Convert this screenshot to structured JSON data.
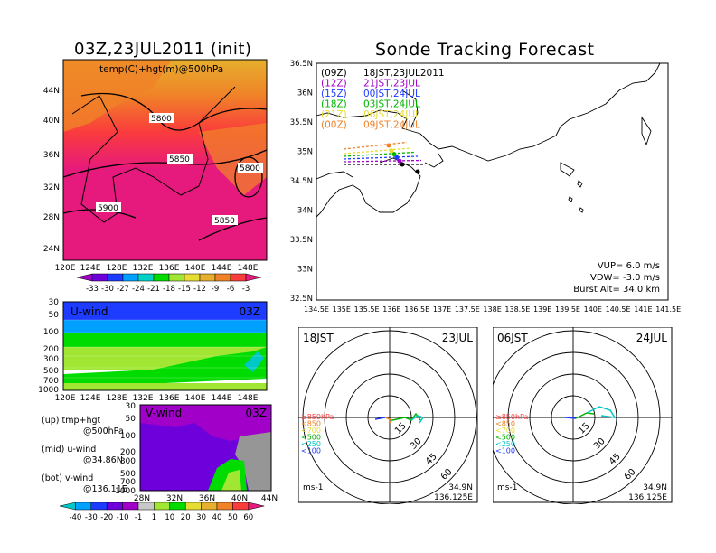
{
  "titles": {
    "left": "03Z,23JUL2011 (init)",
    "right": "Sonde Tracking Forecast"
  },
  "map500": {
    "label": "temp(C)+hgt(m)@500hPa",
    "lat_ticks": [
      "44N",
      "40N",
      "36N",
      "32N",
      "28N",
      "24N"
    ],
    "lon_ticks": [
      "120E",
      "124E",
      "128E",
      "132E",
      "136E",
      "140E",
      "144E",
      "148E"
    ],
    "contour_labels": [
      "5800",
      "5850",
      "5800",
      "5900",
      "5850"
    ],
    "colorbar_values": [
      "-33",
      "-30",
      "-27",
      "-24",
      "-21",
      "-18",
      "-15",
      "-12",
      "-9",
      "-6",
      "-3"
    ],
    "colorbar_colors": [
      "#a000c8",
      "#6e00dc",
      "#1e3cff",
      "#00a0ff",
      "#00d2c8",
      "#00dc00",
      "#a0e632",
      "#e6dc32",
      "#e6af2d",
      "#f08228",
      "#fa3c3c",
      "#e6197d"
    ]
  },
  "uwind": {
    "label": "U-wind",
    "time": "03Z",
    "p_ticks": [
      "30",
      "50",
      "100",
      "200",
      "300",
      "500",
      "700",
      "1000"
    ],
    "lon_ticks": [
      "120E",
      "124E",
      "128E",
      "132E",
      "136E",
      "140E",
      "144E",
      "148E"
    ]
  },
  "vwind": {
    "label": "V-wind",
    "time": "03Z",
    "p_ticks": [
      "30",
      "50",
      "100",
      "200",
      "300",
      "500",
      "700",
      "1000"
    ],
    "lat_ticks": [
      "28N",
      "32N",
      "36N",
      "40N",
      "44N"
    ],
    "colorbar_values": [
      "-40",
      "-30",
      "-20",
      "-10",
      "-1",
      "1",
      "10",
      "20",
      "30",
      "40",
      "50",
      "60"
    ],
    "colorbar_colors": [
      "#00c8c8",
      "#00a0ff",
      "#1e3cff",
      "#6e00dc",
      "#a000c8",
      "#c8c8c8",
      "#a0e632",
      "#00dc00",
      "#e6dc32",
      "#e6af2d",
      "#f08228",
      "#fa3c3c",
      "#e6197d"
    ]
  },
  "notes": {
    "line1": "(up) tmp+hgt",
    "line2": "@500hPa",
    "line3": "(mid) u-wind",
    "line4": "@34.86N",
    "line5": "(bot) v-wind",
    "line6": "@136.11E"
  },
  "track": {
    "lat_ticks": [
      "36.5N",
      "36N",
      "35.5N",
      "35N",
      "34.5N",
      "34N",
      "33.5N",
      "33N",
      "32.5N"
    ],
    "lon_ticks": [
      "134.5E",
      "135E",
      "135.5E",
      "136E",
      "136.5E",
      "137E",
      "137.5E",
      "138E",
      "138.5E",
      "139E",
      "139.5E",
      "140E",
      "140.5E",
      "141E",
      "141.5E"
    ],
    "legend": [
      {
        "code": "(09Z)",
        "text": "18JST,23JUL2011",
        "color": "#000000"
      },
      {
        "code": "(12Z)",
        "text": "21JST,23JUL",
        "color": "#a000c8"
      },
      {
        "code": "(15Z)",
        "text": "00JST,24JUL",
        "color": "#1e3cff"
      },
      {
        "code": "(18Z)",
        "text": "03JST,24JUL",
        "color": "#00b400"
      },
      {
        "code": "(21Z)",
        "text": "06JST,24JUL",
        "color": "#e6dc32"
      },
      {
        "code": "(00Z)",
        "text": "09JST,24JUL",
        "color": "#f08228"
      }
    ],
    "vup": "VUP= 6.0 m/s",
    "vdw": "VDW= -3.0 m/s",
    "burst": "Burst Alt= 34.0 km"
  },
  "hodo1": {
    "time": "18JST",
    "date": "23JUL",
    "ring_labels": [
      "15",
      "30",
      "45",
      "60"
    ],
    "levels": [
      "≥850hPa",
      "<850",
      "<700",
      "<500",
      "<250",
      "<100"
    ],
    "level_colors": [
      "#fa3c3c",
      "#f08228",
      "#e6dc32",
      "#00b400",
      "#00c8c8",
      "#1e3cff"
    ],
    "unit": "ms-1",
    "lat": "34.9N",
    "lon": "136.125E"
  },
  "hodo2": {
    "time": "06JST",
    "date": "24JUL",
    "ring_labels": [
      "15",
      "30",
      "45",
      "60"
    ],
    "levels": [
      "≥850hPa",
      "<850",
      "<700",
      "<500",
      "<250",
      "<100"
    ],
    "level_colors": [
      "#fa3c3c",
      "#f08228",
      "#e6dc32",
      "#00b400",
      "#00c8c8",
      "#1e3cff"
    ],
    "unit": "ms-1",
    "lat": "34.9N",
    "lon": "136.125E"
  },
  "chart_data": [
    {
      "type": "heatmap",
      "title": "03Z,23JUL2011 (init)",
      "label": "temp(C)+hgt(m)@500hPa",
      "xlim": [
        120,
        150
      ],
      "ylim": [
        22,
        47
      ],
      "contours": [
        5800,
        5850,
        5900
      ]
    },
    {
      "type": "heatmap",
      "label": "U-wind",
      "xlim": [
        120,
        150
      ],
      "ylim_hPa": [
        1000,
        30
      ]
    },
    {
      "type": "heatmap",
      "label": "V-wind",
      "xlim": [
        28,
        44
      ],
      "ylim_hPa": [
        1000,
        30
      ]
    },
    {
      "type": "line",
      "title": "Sonde Tracking Forecast",
      "xlim": [
        134.5,
        141.5
      ],
      "ylim": [
        32.5,
        36.5
      ]
    }
  ]
}
